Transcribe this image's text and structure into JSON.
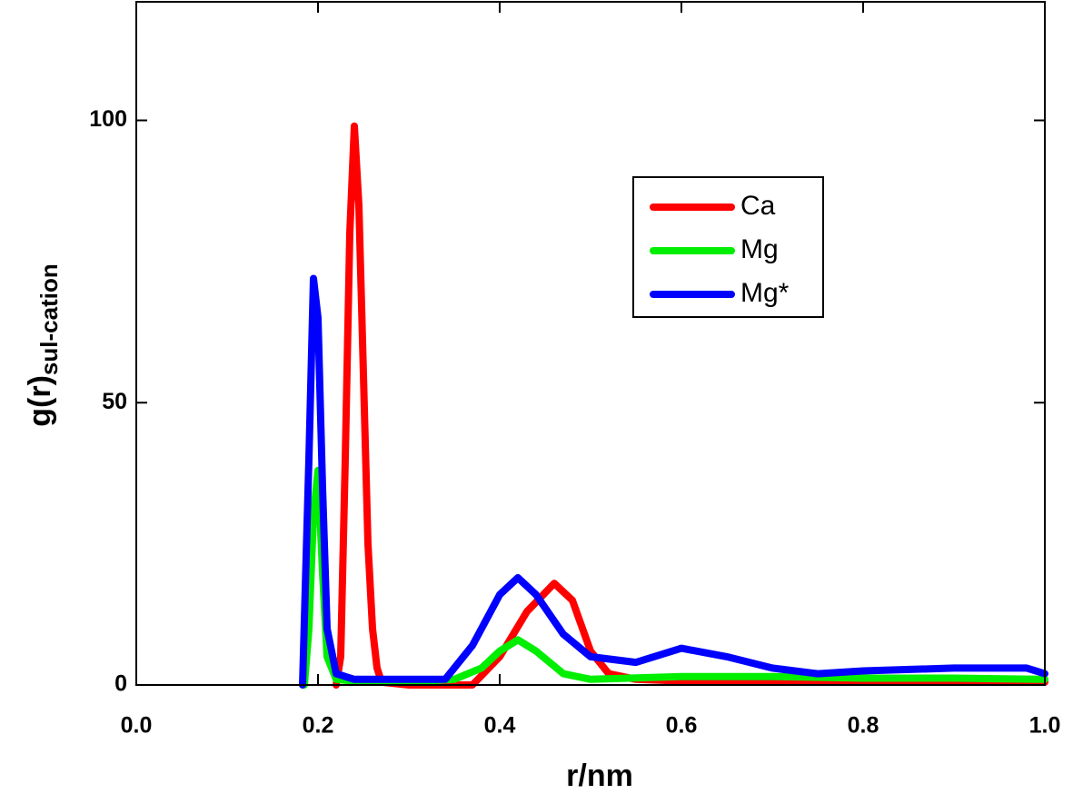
{
  "chart_data": {
    "type": "line",
    "xlabel": "r/nm",
    "ylabel": "g(r)",
    "ylabel_subscript": "sul-cation",
    "xlim": [
      0,
      1
    ],
    "ylim": [
      0,
      121
    ],
    "xticks": [
      {
        "value": 0,
        "label": "0.0"
      },
      0.2,
      0.4,
      0.6,
      0.8,
      {
        "value": 1,
        "label": "1.0"
      }
    ],
    "yticks": [
      0,
      50,
      100
    ],
    "legend": "upper right",
    "series": [
      {
        "name": "Ca",
        "color": "#ff0000",
        "x": [
          0.22,
          0.225,
          0.23,
          0.235,
          0.24,
          0.245,
          0.25,
          0.255,
          0.26,
          0.265,
          0.27,
          0.3,
          0.35,
          0.37,
          0.4,
          0.43,
          0.46,
          0.48,
          0.5,
          0.52,
          0.55,
          0.6,
          0.7,
          0.8,
          0.9,
          1.0
        ],
        "values": [
          0,
          5,
          40,
          80,
          99,
          85,
          55,
          25,
          10,
          3,
          0.5,
          0,
          0,
          0,
          5,
          13,
          18,
          15,
          6,
          2,
          1,
          0.7,
          0.5,
          0.5,
          0.5,
          0.5
        ]
      },
      {
        "name": "Mg",
        "color": "#00ee00",
        "x": [
          0.185,
          0.19,
          0.195,
          0.2,
          0.205,
          0.21,
          0.22,
          0.25,
          0.3,
          0.35,
          0.38,
          0.4,
          0.42,
          0.44,
          0.47,
          0.5,
          0.6,
          0.7,
          0.8,
          0.9,
          1.0
        ],
        "values": [
          0,
          10,
          30,
          38,
          20,
          5,
          1,
          0.5,
          0.5,
          1,
          3,
          6,
          8,
          6,
          2,
          1,
          1.5,
          1.5,
          1.2,
          1.2,
          1
        ]
      },
      {
        "name": "Mg*",
        "color": "#0000ff",
        "x": [
          0.183,
          0.19,
          0.195,
          0.2,
          0.205,
          0.21,
          0.22,
          0.24,
          0.3,
          0.34,
          0.37,
          0.4,
          0.42,
          0.44,
          0.47,
          0.5,
          0.55,
          0.6,
          0.65,
          0.7,
          0.75,
          0.8,
          0.9,
          0.98,
          1.0
        ],
        "values": [
          0,
          40,
          72,
          65,
          35,
          10,
          2,
          1,
          1,
          1,
          7,
          16,
          19,
          16,
          9,
          5,
          4,
          6.5,
          5,
          3,
          2,
          2.5,
          3,
          3,
          2
        ]
      }
    ]
  }
}
